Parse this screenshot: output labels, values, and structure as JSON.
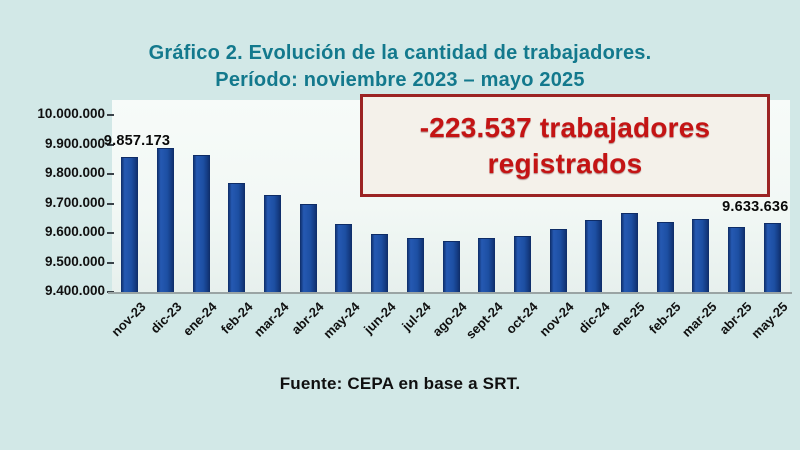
{
  "page": {
    "background_color": "#d2e8e7"
  },
  "chart_data": {
    "type": "bar",
    "title": "Gráfico 2. Evolución de la cantidad de trabajadores.",
    "subtitle": "Período: noviembre 2023 – mayo 2025",
    "title_color": "#13798d",
    "bar_color": "#1d4fa3",
    "bar_edge_color": "#0e2c66",
    "plot_bg_color": "#f2f8f5",
    "categories": [
      "nov-23",
      "dic-23",
      "ene-24",
      "feb-24",
      "mar-24",
      "abr-24",
      "may-24",
      "jun-24",
      "jul-24",
      "ago-24",
      "sept-24",
      "oct-24",
      "nov-24",
      "dic-24",
      "ene-25",
      "feb-25",
      "mar-25",
      "abr-25",
      "may-25"
    ],
    "values": [
      9857173,
      9888000,
      9863000,
      9768000,
      9730000,
      9698000,
      9632000,
      9597000,
      9582000,
      9574000,
      9583000,
      9590000,
      9614000,
      9643000,
      9669000,
      9637000,
      9646000,
      9620000,
      9633636
    ],
    "ylim": [
      9400000,
      10000000
    ],
    "ytick_step": 100000,
    "ytick_labels": [
      "10.000.000",
      "9.900.000",
      "9.800.000",
      "9.700.000",
      "9.600.000",
      "9.500.000",
      "9.400.000"
    ],
    "grid": "off",
    "legend": "none",
    "xlabel": "",
    "ylabel": "",
    "first_point_label": "9.857.173",
    "last_point_label": "9.633.636",
    "annotation": {
      "line1": "-223.537 trabajadores",
      "line2": "registrados",
      "text_color": "#c41414",
      "border_color": "#9b2323",
      "bg_color": "#f4f1ea"
    },
    "source": "Fuente: CEPA en base a SRT."
  }
}
